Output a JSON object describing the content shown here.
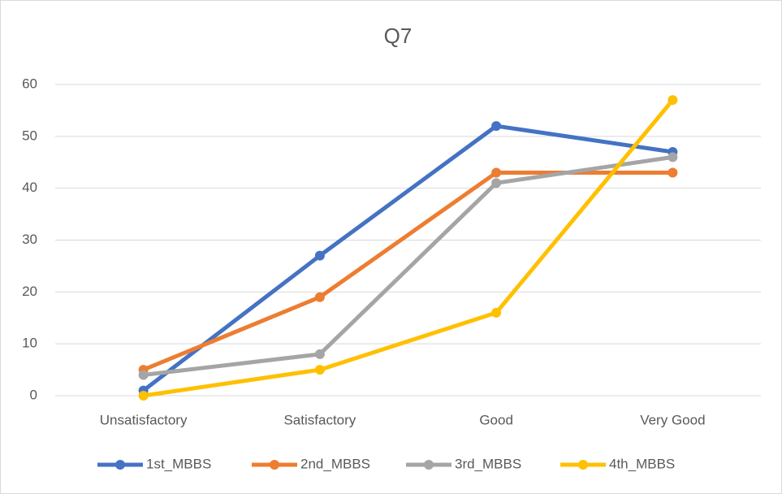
{
  "chart_data": {
    "type": "line",
    "title": "Q7",
    "categories": [
      "Unsatisfactory",
      "Satisfactory",
      "Good",
      "Very Good"
    ],
    "series": [
      {
        "name": "1st_MBBS",
        "color": "#4472c4",
        "values": [
          1,
          27,
          52,
          47
        ]
      },
      {
        "name": "2nd_MBBS",
        "color": "#ed7d31",
        "values": [
          5,
          19,
          43,
          43
        ]
      },
      {
        "name": "3rd_MBBS",
        "color": "#a5a5a5",
        "values": [
          4,
          8,
          41,
          46
        ]
      },
      {
        "name": "4th_MBBS",
        "color": "#ffc000",
        "values": [
          0,
          5,
          16,
          57
        ]
      }
    ],
    "ylim": [
      0,
      60
    ],
    "yticks": [
      0,
      10,
      20,
      30,
      40,
      50,
      60
    ],
    "grid": true,
    "legend": "bottom"
  }
}
